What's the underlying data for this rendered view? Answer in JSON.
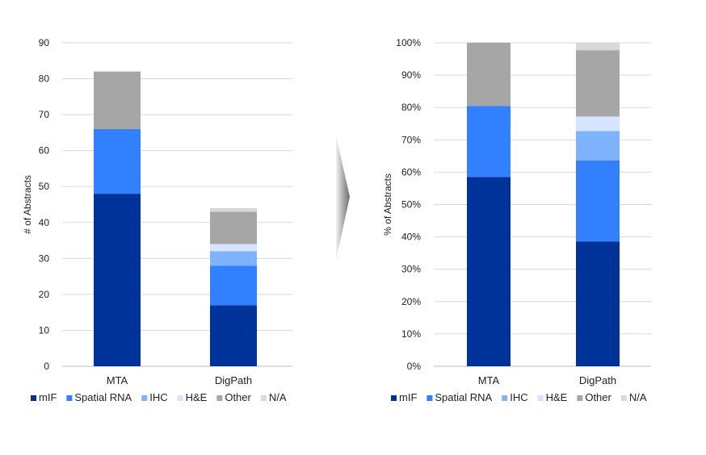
{
  "colors": {
    "mIF": "#003399",
    "Spatial RNA": "#3380ff",
    "IHC": "#80b3ff",
    "H&E": "#d6e5ff",
    "Other": "#a6a6a6",
    "N/A": "#d9d9d9",
    "grid": "#d9d9d9",
    "axis": "#bfbfbf",
    "arrow": "#7f7f7f"
  },
  "arrow_icon": "right-chevron-arrow",
  "chart_data": [
    {
      "type": "bar",
      "stacked": true,
      "categories": [
        "MTA",
        "DigPath"
      ],
      "series": [
        {
          "name": "mIF",
          "values": [
            48,
            17
          ]
        },
        {
          "name": "Spatial RNA",
          "values": [
            18,
            11
          ]
        },
        {
          "name": "IHC",
          "values": [
            0,
            4
          ]
        },
        {
          "name": "H&E",
          "values": [
            0,
            2
          ]
        },
        {
          "name": "Other",
          "values": [
            16,
            9
          ]
        },
        {
          "name": "N/A",
          "values": [
            0,
            1
          ]
        }
      ],
      "ylabel": "# of Abstracts",
      "ylim": [
        0,
        90
      ],
      "yticks": [
        "0",
        "10",
        "20",
        "30",
        "40",
        "50",
        "60",
        "70",
        "80",
        "90"
      ],
      "grid": true,
      "legend": "bottom"
    },
    {
      "type": "bar",
      "stacked": true,
      "percent": true,
      "categories": [
        "MTA",
        "DigPath"
      ],
      "series": [
        {
          "name": "mIF",
          "values": [
            58.5,
            38.6
          ]
        },
        {
          "name": "Spatial RNA",
          "values": [
            22.0,
            25.0
          ]
        },
        {
          "name": "IHC",
          "values": [
            0,
            9.1
          ]
        },
        {
          "name": "H&E",
          "values": [
            0,
            4.5
          ]
        },
        {
          "name": "Other",
          "values": [
            19.5,
            20.5
          ]
        },
        {
          "name": "N/A",
          "values": [
            0,
            2.3
          ]
        }
      ],
      "ylabel": "% of Abstracts",
      "ylim": [
        0,
        100
      ],
      "yticks": [
        "0%",
        "10%",
        "20%",
        "30%",
        "40%",
        "50%",
        "60%",
        "70%",
        "80%",
        "90%",
        "100%"
      ],
      "grid": true,
      "legend": "bottom"
    }
  ]
}
